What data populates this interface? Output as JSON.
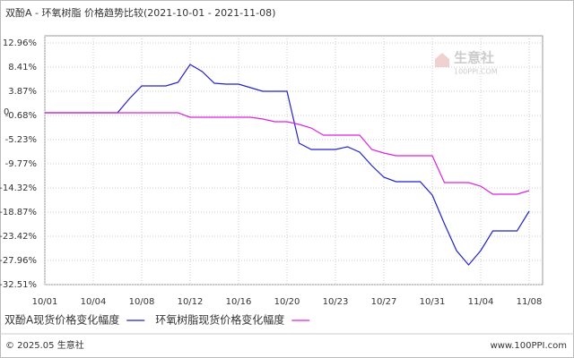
{
  "chart_data": {
    "type": "line",
    "title": "双酚A - 环氧树脂 价格趋势比较(2021-10-01 - 2021-11-08)",
    "categories": [
      "10/01",
      null,
      null,
      null,
      "10/04",
      null,
      null,
      null,
      "10/08",
      null,
      null,
      null,
      "10/12",
      null,
      null,
      null,
      "10/16",
      null,
      null,
      null,
      "10/20",
      null,
      null,
      null,
      "10/23",
      null,
      null,
      null,
      "10/27",
      null,
      null,
      null,
      "10/31",
      null,
      null,
      null,
      "11/04",
      null,
      null,
      null,
      "11/08"
    ],
    "series": [
      {
        "name": "双酚A现货价格变化幅度",
        "color": "#2222cc",
        "values": [
          -0.18,
          -0.18,
          -0.18,
          -0.18,
          -0.18,
          -0.18,
          -0.18,
          2.52,
          4.88,
          4.88,
          4.88,
          5.55,
          8.92,
          7.57,
          5.38,
          5.21,
          5.21,
          4.54,
          3.87,
          3.87,
          3.87,
          -5.9,
          -7.08,
          -7.08,
          -7.08,
          -6.57,
          -7.58,
          -10.11,
          -12.3,
          -13.14,
          -13.14,
          -13.14,
          -15.67,
          -21.06,
          -26.11,
          -28.8,
          -26.11,
          -22.4,
          -22.4,
          -22.4,
          -18.7
        ]
      },
      {
        "name": "环氧树脂现货价格变化幅度",
        "color": "#dd22dd",
        "values": [
          -0.18,
          -0.18,
          -0.18,
          -0.18,
          -0.18,
          -0.18,
          -0.18,
          -0.18,
          -0.18,
          -0.18,
          -0.18,
          -0.18,
          -1.02,
          -1.02,
          -1.02,
          -1.02,
          -1.02,
          -1.02,
          -1.35,
          -1.86,
          -1.86,
          -2.36,
          -3.04,
          -4.39,
          -4.39,
          -4.39,
          -4.39,
          -7.08,
          -7.75,
          -8.26,
          -8.26,
          -8.26,
          -8.26,
          -13.31,
          -13.31,
          -13.31,
          -13.98,
          -15.5,
          -15.5,
          -15.5,
          -14.83
        ]
      }
    ],
    "ylim": [
      -32.51,
      12.96
    ],
    "yticks": [
      {
        "value": 12.96,
        "label": "12.96%"
      },
      {
        "value": 8.41,
        "label": "8.41%"
      },
      {
        "value": 3.87,
        "label": "3.87%"
      },
      0,
      {
        "value": -0.68,
        "label": "-0.68%"
      },
      {
        "value": -5.23,
        "label": "-5.23%"
      },
      {
        "value": -9.77,
        "label": "-9.77%"
      },
      {
        "value": -14.32,
        "label": "-14.32%"
      },
      {
        "value": -18.87,
        "label": "-18.87%"
      },
      {
        "value": -23.42,
        "label": "-23.42%"
      },
      {
        "value": -27.96,
        "label": "-27.96%"
      },
      {
        "value": -32.51,
        "label": "-32.51%"
      }
    ],
    "grid": true
  },
  "watermark": {
    "name": "生意社",
    "site": "100PPI.COM"
  },
  "footer": {
    "copyright": "© 2025.05 生意社",
    "site": "www.100PPI.com"
  }
}
